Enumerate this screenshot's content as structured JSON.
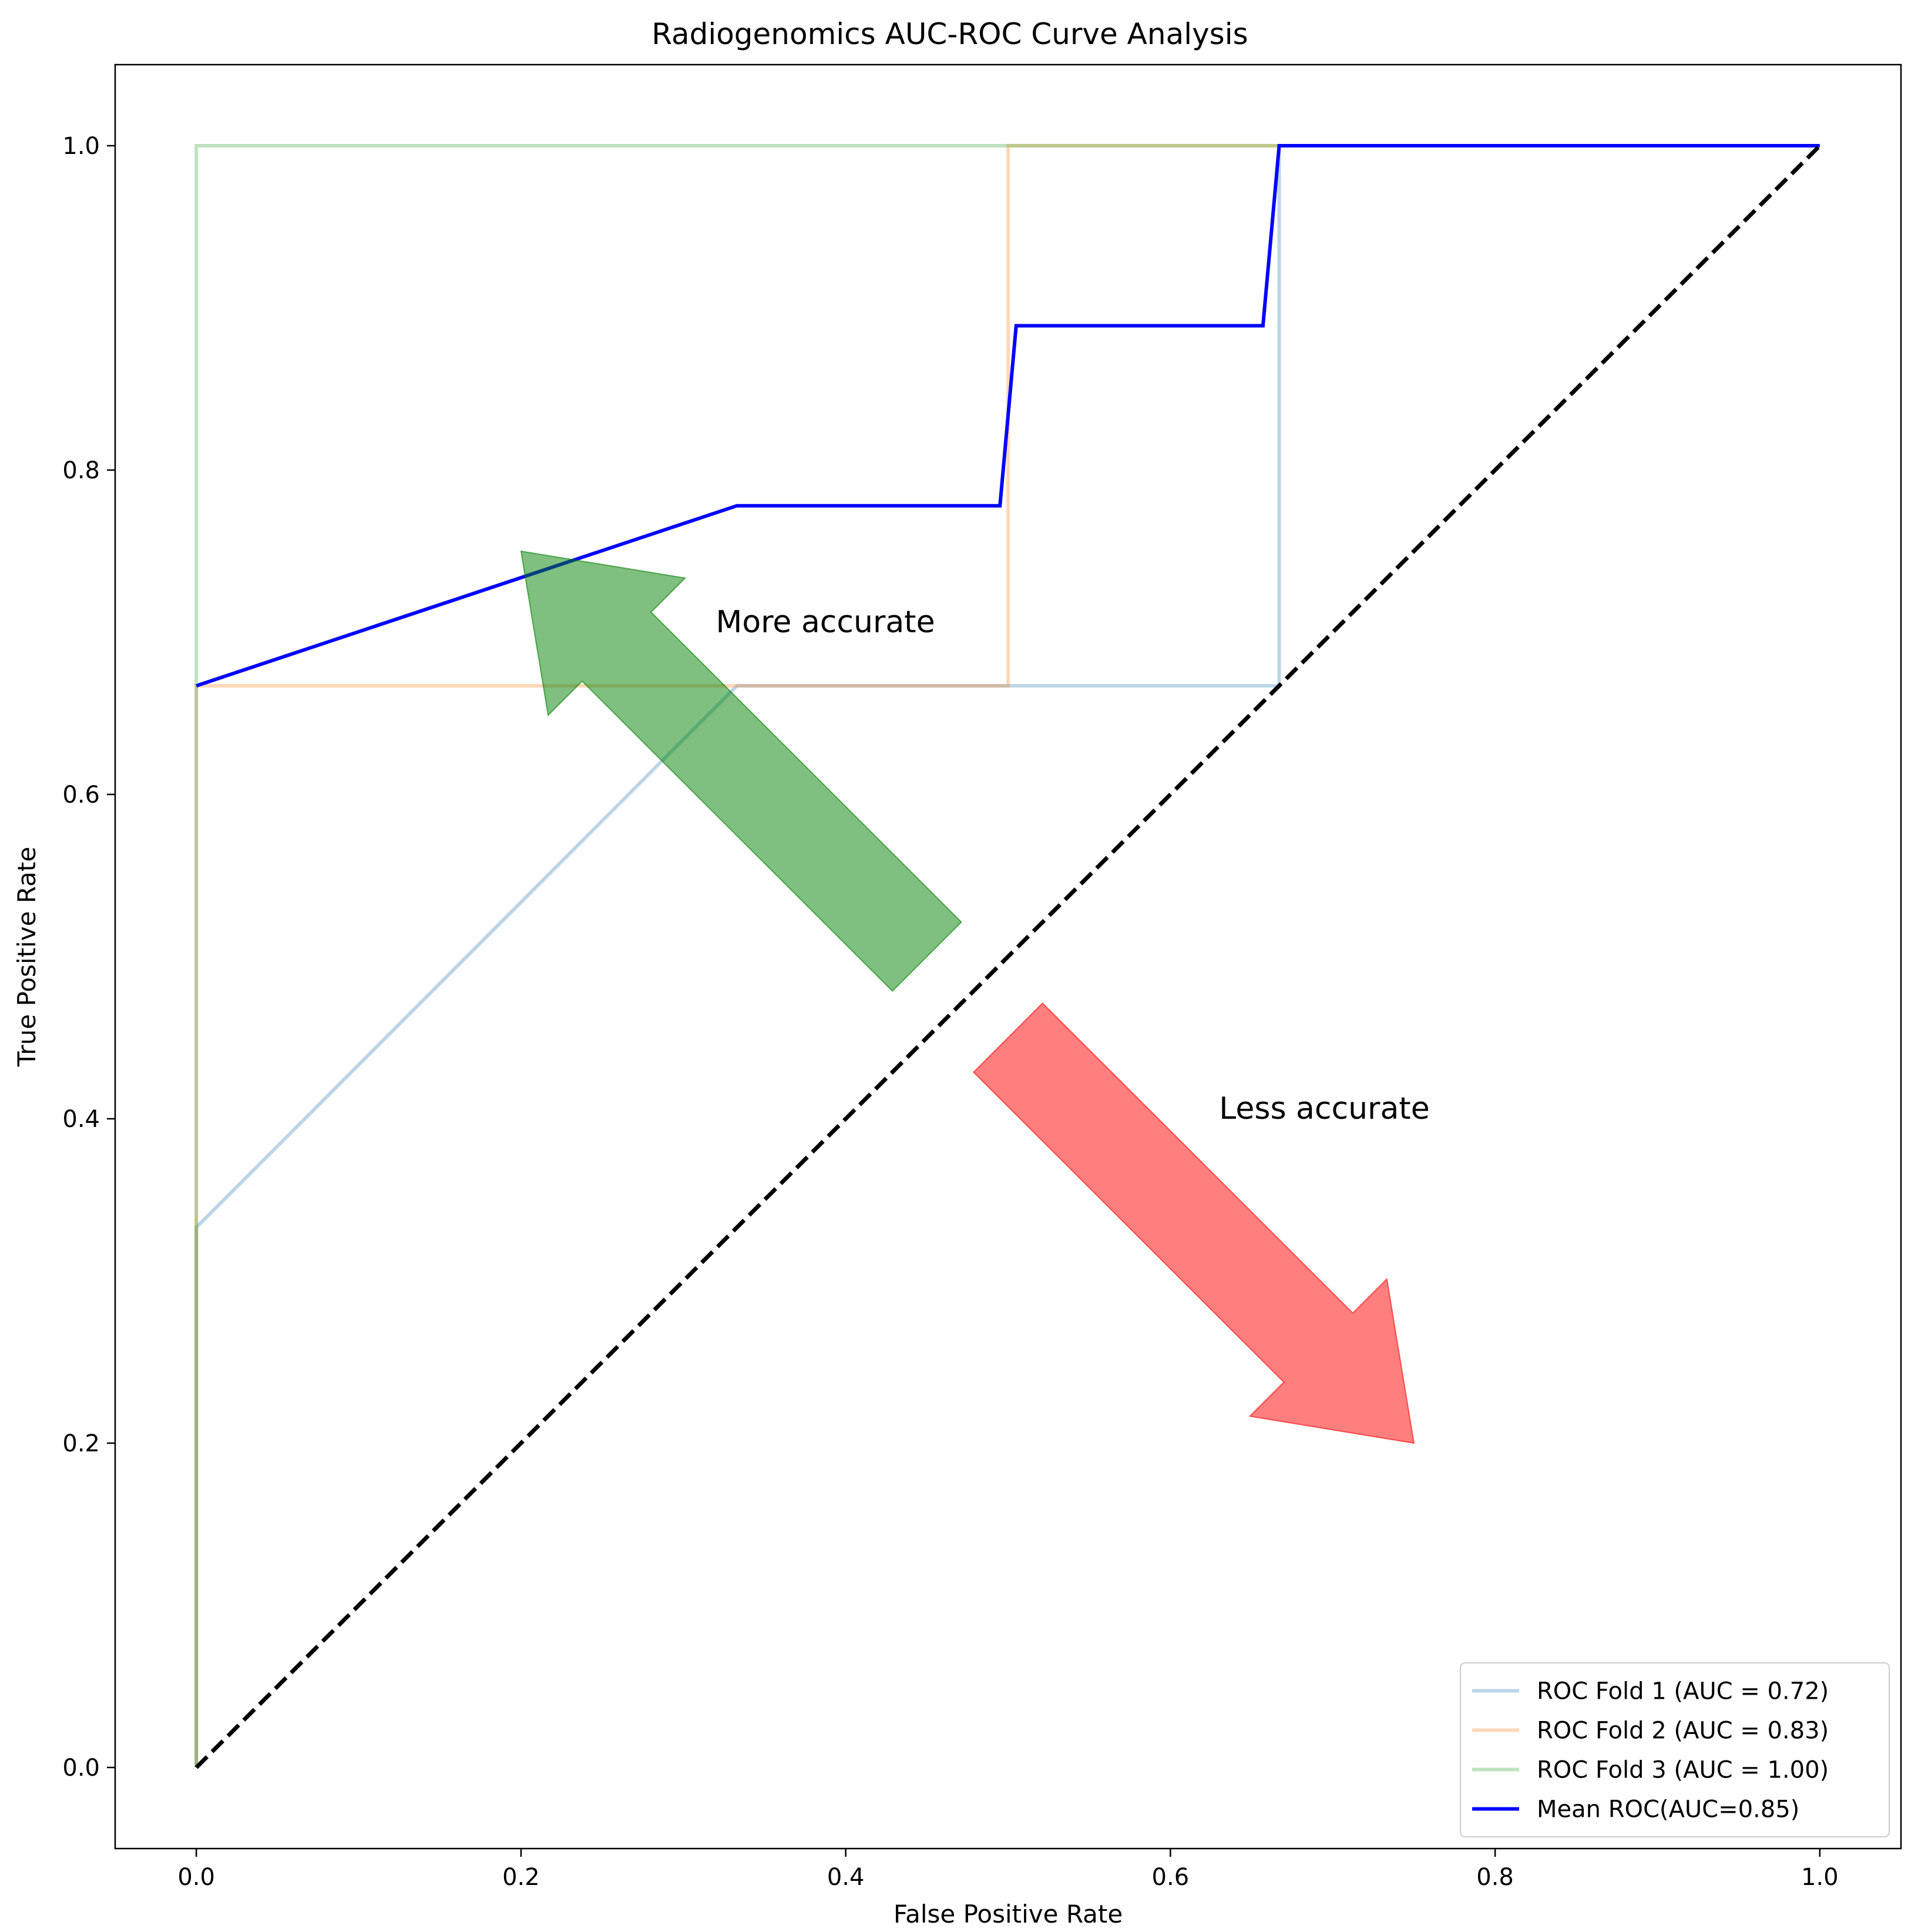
{
  "chart_data": {
    "type": "line",
    "title": "Radiogenomics AUC-ROC Curve Analysis",
    "xlabel": "False Positive Rate",
    "ylabel": "True Positive Rate",
    "xlim": [
      -0.05,
      1.05
    ],
    "ylim": [
      -0.05,
      1.05
    ],
    "xticks": [
      0.0,
      0.2,
      0.4,
      0.6,
      0.8,
      1.0
    ],
    "yticks": [
      0.0,
      0.2,
      0.4,
      0.6,
      0.8,
      1.0
    ],
    "xtick_labels": [
      "0.0",
      "0.2",
      "0.4",
      "0.6",
      "0.8",
      "1.0"
    ],
    "ytick_labels": [
      "0.0",
      "0.2",
      "0.4",
      "0.6",
      "0.8",
      "1.0"
    ],
    "grid": false,
    "legend_position": "lower-right",
    "series": [
      {
        "name": "ROC Fold 1 (AUC = 0.72)",
        "color": "#1f77b4",
        "opacity": 0.3,
        "style": "solid",
        "x": [
          0.0,
          0.0,
          0.333,
          0.667,
          0.667,
          1.0
        ],
        "y": [
          0.0,
          0.333,
          0.667,
          0.667,
          1.0,
          1.0
        ]
      },
      {
        "name": "ROC Fold 2 (AUC = 0.83)",
        "color": "#ff7f0e",
        "opacity": 0.3,
        "style": "solid",
        "x": [
          0.0,
          0.0,
          0.5,
          0.5,
          1.0
        ],
        "y": [
          0.0,
          0.667,
          0.667,
          1.0,
          1.0
        ]
      },
      {
        "name": "ROC Fold 3 (AUC = 1.00)",
        "color": "#2ca02c",
        "opacity": 0.3,
        "style": "solid",
        "x": [
          0.0,
          0.0,
          1.0
        ],
        "y": [
          0.0,
          1.0,
          1.0
        ]
      },
      {
        "name": "Mean ROC(AUC=0.85)",
        "color": "#0000ff",
        "opacity": 1.0,
        "style": "solid",
        "x": [
          0.0,
          0.333,
          0.495,
          0.505,
          0.657,
          0.667,
          1.0
        ],
        "y": [
          0.667,
          0.778,
          0.778,
          0.889,
          0.889,
          1.0,
          1.0
        ]
      },
      {
        "name": "",
        "color": "#000000",
        "opacity": 1.0,
        "style": "dashed",
        "x": [
          0.0,
          1.0
        ],
        "y": [
          0.0,
          1.0
        ]
      }
    ],
    "annotations": [
      {
        "text": "More accurate",
        "x": 0.32,
        "y": 0.7,
        "color": "#008000",
        "arrow_tail": [
          0.45,
          0.5
        ],
        "arrow_head": [
          0.2,
          0.75
        ]
      },
      {
        "text": "Less accurate",
        "x": 0.63,
        "y": 0.4,
        "color": "#ff0000",
        "arrow_tail": [
          0.5,
          0.45
        ],
        "arrow_head": [
          0.75,
          0.2
        ]
      }
    ]
  }
}
